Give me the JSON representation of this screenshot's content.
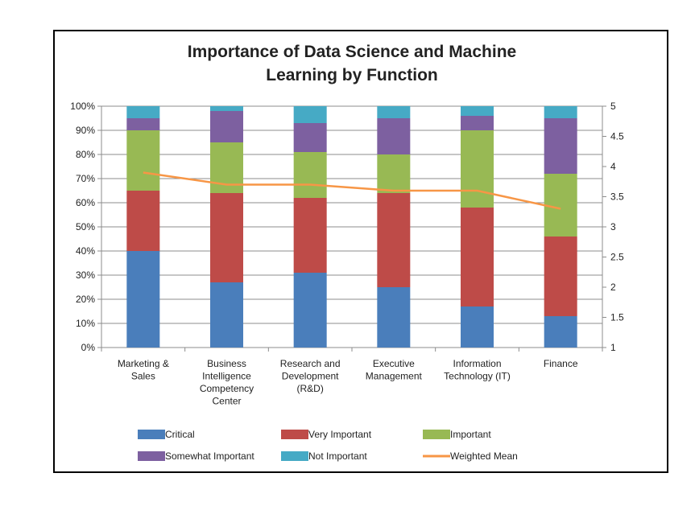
{
  "chart_data": {
    "type": "bar",
    "stacked": true,
    "title_lines": [
      "Importance of Data Science and Machine",
      "Learning by Function"
    ],
    "categories": [
      [
        "Marketing &",
        "Sales"
      ],
      [
        "Business",
        "Intelligence",
        "Competency",
        "Center"
      ],
      [
        "Research and",
        "Development",
        "(R&D)"
      ],
      [
        "Executive",
        "Management"
      ],
      [
        "Information",
        "Technology (IT)"
      ],
      [
        "Finance"
      ]
    ],
    "series": [
      {
        "name": "Critical",
        "color": "#4a7ebb",
        "values": [
          40,
          27,
          31,
          25,
          17,
          13
        ]
      },
      {
        "name": "Very Important",
        "color": "#be4b48",
        "values": [
          25,
          37,
          31,
          39,
          41,
          33
        ]
      },
      {
        "name": "Important",
        "color": "#98b954",
        "values": [
          25,
          21,
          19,
          16,
          32,
          26
        ]
      },
      {
        "name": "Somewhat Important",
        "color": "#7d60a0",
        "values": [
          5,
          13,
          12,
          15,
          6,
          23
        ]
      },
      {
        "name": "Not Important",
        "color": "#46aac5",
        "values": [
          5,
          2,
          7,
          5,
          4,
          5
        ]
      }
    ],
    "line_series": {
      "name": "Weighted Mean",
      "color": "#f79646",
      "axis": "right",
      "values": [
        3.9,
        3.7,
        3.7,
        3.6,
        3.6,
        3.3
      ]
    },
    "y_left": {
      "min": 0,
      "max": 100,
      "step": 10,
      "ticks": [
        "0%",
        "10%",
        "20%",
        "30%",
        "40%",
        "50%",
        "60%",
        "70%",
        "80%",
        "90%",
        "100%"
      ]
    },
    "y_right": {
      "min": 1,
      "max": 5,
      "step": 0.5,
      "ticks": [
        "1",
        "1.5",
        "2",
        "2.5",
        "3",
        "3.5",
        "4",
        "4.5",
        "5"
      ]
    },
    "grid": true,
    "legend_position": "bottom"
  }
}
